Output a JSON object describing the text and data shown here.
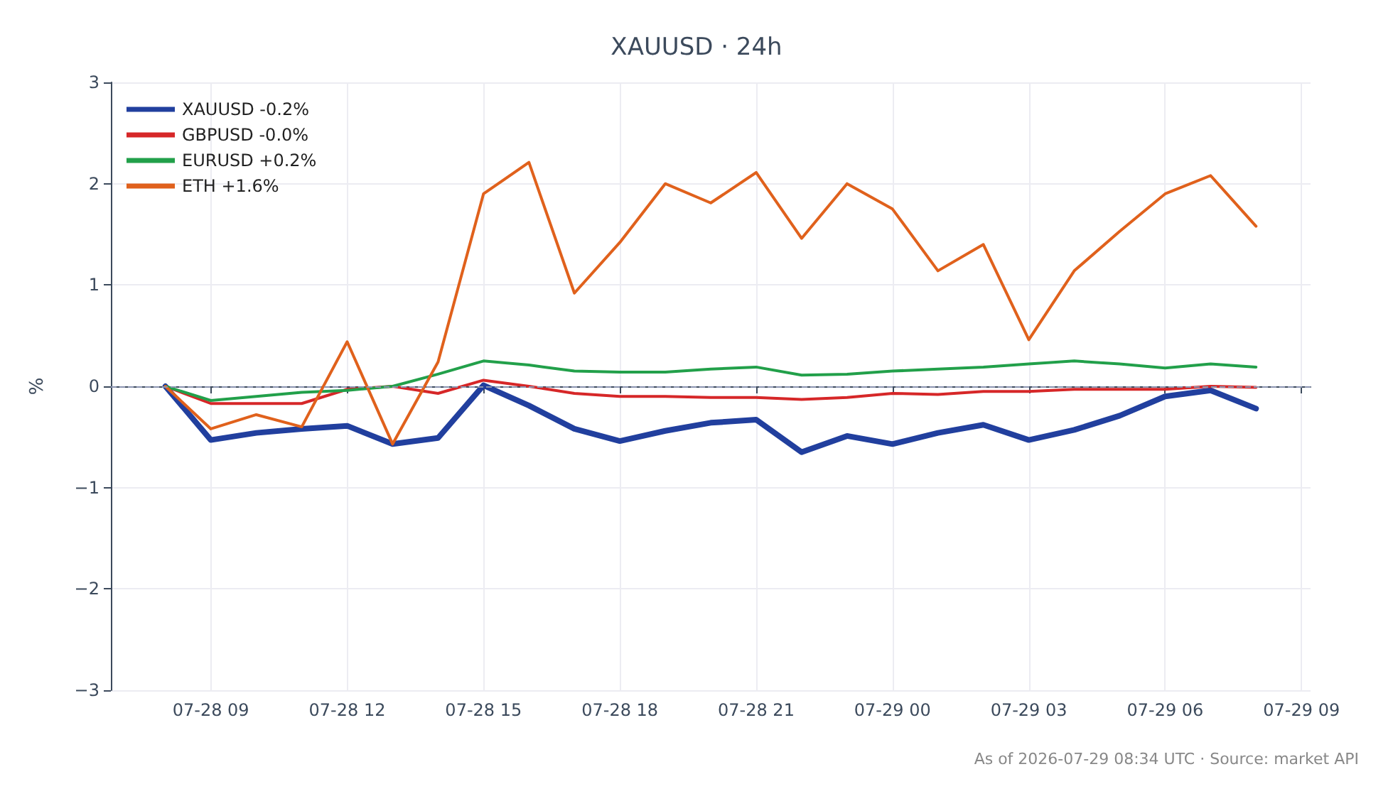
{
  "chart_data": {
    "type": "line",
    "title": "XAUUSD · 24h",
    "ylabel": "%",
    "x": [
      "2026-07-28T08:00",
      "2026-07-28T09:00",
      "2026-07-28T10:00",
      "2026-07-28T11:00",
      "2026-07-28T12:00",
      "2026-07-28T13:00",
      "2026-07-28T14:00",
      "2026-07-28T15:00",
      "2026-07-28T16:00",
      "2026-07-28T17:00",
      "2026-07-28T18:00",
      "2026-07-28T19:00",
      "2026-07-28T20:00",
      "2026-07-28T21:00",
      "2026-07-28T22:00",
      "2026-07-28T23:00",
      "2026-07-29T00:00",
      "2026-07-29T01:00",
      "2026-07-29T02:00",
      "2026-07-29T03:00",
      "2026-07-29T04:00",
      "2026-07-29T05:00",
      "2026-07-29T06:00",
      "2026-07-29T07:00",
      "2026-07-29T08:00"
    ],
    "series": [
      {
        "name": "XAUUSD -0.2%",
        "color": "#213f9e",
        "values": [
          0,
          -0.53,
          -0.46,
          -0.42,
          -0.39,
          -0.57,
          -0.51,
          0.01,
          -0.19,
          -0.42,
          -0.54,
          -0.44,
          -0.36,
          -0.33,
          -0.65,
          -0.49,
          -0.57,
          -0.46,
          -0.38,
          -0.53,
          -0.43,
          -0.29,
          -0.1,
          -0.04,
          -0.22
        ]
      },
      {
        "name": "GBPUSD -0.0%",
        "color": "#d62728",
        "values": [
          0,
          -0.17,
          -0.17,
          -0.17,
          -0.03,
          0,
          -0.07,
          0.06,
          0,
          -0.07,
          -0.1,
          -0.1,
          -0.11,
          -0.11,
          -0.13,
          -0.11,
          -0.07,
          -0.08,
          -0.05,
          -0.05,
          -0.03,
          -0.03,
          -0.03,
          0,
          -0.01
        ]
      },
      {
        "name": "EURUSD +0.2%",
        "color": "#22a04a",
        "values": [
          0,
          -0.14,
          -0.1,
          -0.06,
          -0.04,
          0,
          0.12,
          0.25,
          0.21,
          0.15,
          0.14,
          0.14,
          0.17,
          0.19,
          0.11,
          0.12,
          0.15,
          0.17,
          0.19,
          0.22,
          0.25,
          0.22,
          0.18,
          0.22,
          0.19
        ]
      },
      {
        "name": "ETH +1.6%",
        "color": "#e0611c",
        "values": [
          0,
          -0.42,
          -0.28,
          -0.4,
          0.44,
          -0.57,
          0.24,
          1.9,
          2.21,
          0.92,
          1.42,
          2.0,
          1.81,
          2.11,
          1.46,
          2.0,
          1.75,
          1.14,
          1.4,
          0.46,
          1.14,
          1.53,
          1.9,
          2.08,
          1.58
        ]
      }
    ],
    "xlim": [
      "2026-07-28T06:48",
      "2026-07-29T09:12"
    ],
    "xticks": [
      {
        "value": "2026-07-28T09:00",
        "label": "07-28 09"
      },
      {
        "value": "2026-07-28T12:00",
        "label": "07-28 12"
      },
      {
        "value": "2026-07-28T15:00",
        "label": "07-28 15"
      },
      {
        "value": "2026-07-28T18:00",
        "label": "07-28 18"
      },
      {
        "value": "2026-07-28T21:00",
        "label": "07-28 21"
      },
      {
        "value": "2026-07-29T00:00",
        "label": "07-29 00"
      },
      {
        "value": "2026-07-29T03:00",
        "label": "07-29 03"
      },
      {
        "value": "2026-07-29T06:00",
        "label": "07-29 06"
      },
      {
        "value": "2026-07-29T09:00",
        "label": "07-29 09"
      }
    ],
    "ylim": [
      -3,
      3
    ],
    "yticks": [
      -3,
      -2,
      -1,
      0,
      1,
      2,
      3
    ],
    "ref_lines": [
      {
        "axis": "y",
        "value": 0,
        "color": "#8a94b0",
        "line_style": "dashed"
      }
    ],
    "grid": true,
    "legend": "top left",
    "marker": "none",
    "line_style": "solid",
    "annotations": [
      "As of 2026-07-29 08:34 UTC · Source: market API"
    ]
  }
}
